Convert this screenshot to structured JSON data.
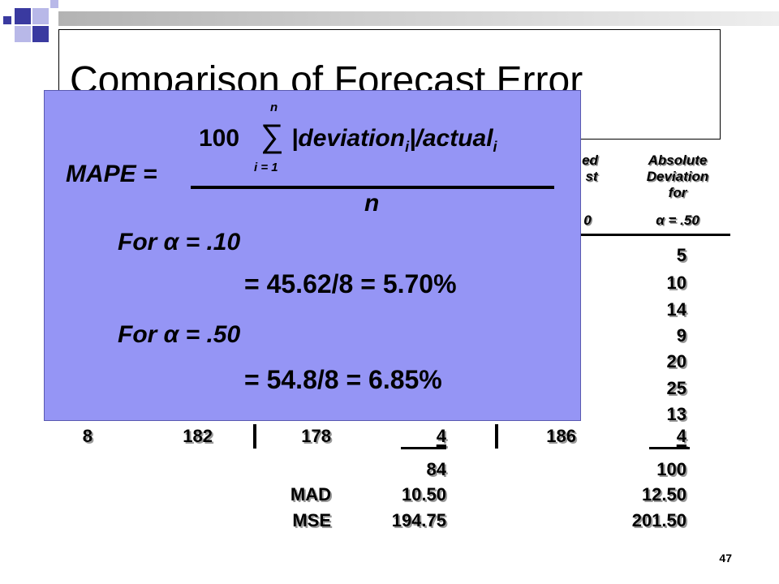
{
  "slide": {
    "title": "Comparison of Forecast Error",
    "page_number": "47"
  },
  "table": {
    "header_rounded_forecast_partial": [
      "ed",
      "st",
      "0"
    ],
    "header_abs_deviation": [
      "Absolute",
      "Deviation",
      "for",
      "α = .50"
    ],
    "right_column_values": [
      "5",
      "10",
      "14",
      "9",
      "20",
      "25",
      "13"
    ],
    "last_row": {
      "quarter": "8",
      "actual": "182",
      "forecast_a10": "178",
      "abs_dev_a10": "4",
      "forecast_a50": "186",
      "abs_dev_a50": "4"
    },
    "totals": {
      "sum_a10": "84",
      "sum_a50": "100",
      "mad_label": "MAD",
      "mad_a10": "10.50",
      "mad_a50": "12.50",
      "mse_label": "MSE",
      "mse_a10": "194.75",
      "mse_a50": "201.50"
    }
  },
  "overlay": {
    "sum_upper": "n",
    "numerator_coeff": "100",
    "sigma": "∑",
    "numerator_expr_a": "|deviation",
    "numerator_sub_i": "i",
    "numerator_expr_b": "|/actual",
    "numerator_sub_i2": "i",
    "sum_lower": "i = 1",
    "lhs": "MAPE =",
    "denominator": "n",
    "case1_label": "For α = .10",
    "case1_result": "= 45.62/8 = 5.70%",
    "case2_label": "For α = .50",
    "case2_result": "= 54.8/8 = 6.85%"
  },
  "colors": {
    "panel": "#9595f5",
    "corner_dark": "#3a3aa0",
    "corner_light": "#b8b8e8"
  }
}
